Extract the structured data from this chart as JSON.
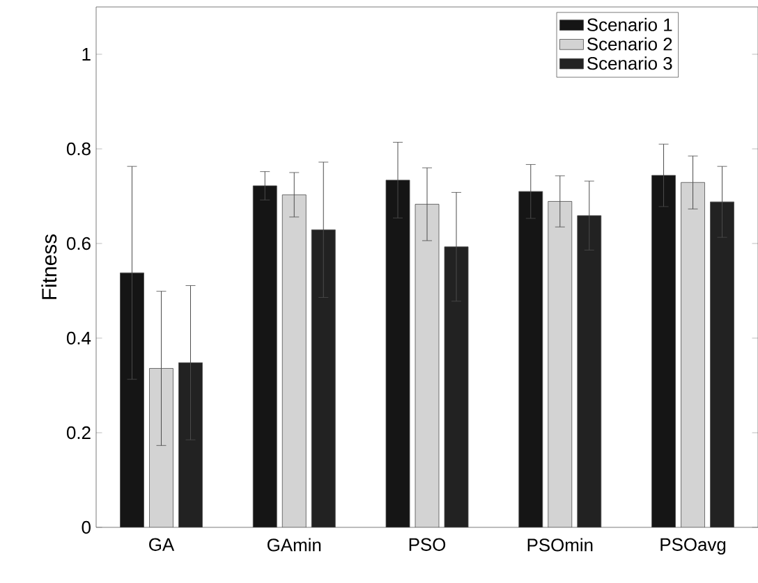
{
  "chart_data": {
    "type": "bar",
    "ylabel": "Fitness",
    "categories": [
      "GA",
      "GAmin",
      "PSO",
      "PSOmin",
      "PSOavg"
    ],
    "series": [
      {
        "name": "Scenario 1",
        "color": "#151515",
        "values": [
          0.538,
          0.722,
          0.734,
          0.71,
          0.744
        ],
        "errors": [
          0.225,
          0.03,
          0.08,
          0.057,
          0.066
        ]
      },
      {
        "name": "Scenario 2",
        "color": "#d3d3d3",
        "values": [
          0.336,
          0.703,
          0.683,
          0.689,
          0.729
        ],
        "errors": [
          0.163,
          0.047,
          0.077,
          0.054,
          0.056
        ]
      },
      {
        "name": "Scenario 3",
        "color": "#222222",
        "values": [
          0.348,
          0.629,
          0.593,
          0.659,
          0.688
        ],
        "errors": [
          0.163,
          0.143,
          0.115,
          0.073,
          0.075
        ]
      }
    ],
    "ylim": [
      0,
      1.1
    ],
    "yticks": [
      0,
      0.2,
      0.4,
      0.6,
      0.8,
      1
    ],
    "grid": false,
    "legend": "top right"
  }
}
